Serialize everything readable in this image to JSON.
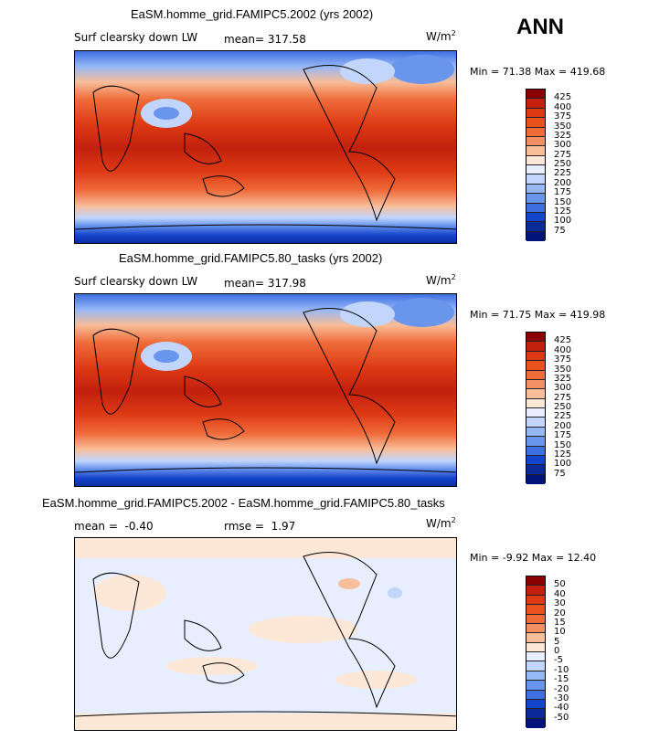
{
  "season": "ANN",
  "panels": [
    {
      "title": "EaSM.homme_grid.FAMIPC5.2002 (yrs 2002)",
      "variable": "Surf clearsky down LW",
      "mean_label": "mean=",
      "mean_value": "317.58",
      "units": "W/m",
      "units_exp": "2",
      "min_label": "Min =",
      "min_value": "71.38",
      "max_label": "Max =",
      "max_value": "419.68",
      "levels": [
        "425",
        "400",
        "375",
        "350",
        "325",
        "300",
        "275",
        "250",
        "225",
        "200",
        "175",
        "150",
        "125",
        "100",
        "75"
      ],
      "colors": [
        "#8b0000",
        "#c3200e",
        "#dd3a14",
        "#e9521e",
        "#ef6c3a",
        "#f39063",
        "#f8bd99",
        "#fde8d8",
        "#e6eeff",
        "#c2d6fc",
        "#96b8f6",
        "#6a95ec",
        "#3d6fe0",
        "#1544cc",
        "#0a2a9a",
        "#00137a"
      ]
    },
    {
      "title": "EaSM.homme_grid.FAMIPC5.80_tasks (yrs 2002)",
      "variable": "Surf clearsky down LW",
      "mean_label": "mean=",
      "mean_value": "317.98",
      "units": "W/m",
      "units_exp": "2",
      "min_label": "Min =",
      "min_value": "71.75",
      "max_label": "Max =",
      "max_value": "419.98",
      "levels": [
        "425",
        "400",
        "375",
        "350",
        "325",
        "300",
        "275",
        "250",
        "225",
        "200",
        "175",
        "150",
        "125",
        "100",
        "75"
      ],
      "colors": [
        "#8b0000",
        "#c3200e",
        "#dd3a14",
        "#e9521e",
        "#ef6c3a",
        "#f39063",
        "#f8bd99",
        "#fde8d8",
        "#e6eeff",
        "#c2d6fc",
        "#96b8f6",
        "#6a95ec",
        "#3d6fe0",
        "#1544cc",
        "#0a2a9a",
        "#00137a"
      ]
    },
    {
      "title": "EaSM.homme_grid.FAMIPC5.2002 - EaSM.homme_grid.FAMIPC5.80_tasks",
      "mean_label": "mean =",
      "mean_value": "-0.40",
      "rmse_label": "rmse =",
      "rmse_value": "1.97",
      "units": "W/m",
      "units_exp": "2",
      "min_label": "Min =",
      "min_value": "-9.92",
      "max_label": "Max =",
      "max_value": "12.40",
      "levels": [
        "50",
        "40",
        "30",
        "20",
        "15",
        "10",
        "5",
        "0",
        "-5",
        "-10",
        "-15",
        "-20",
        "-30",
        "-40",
        "-50"
      ],
      "colors": [
        "#8b0000",
        "#c3200e",
        "#dd3a14",
        "#e9521e",
        "#ef6c3a",
        "#f39063",
        "#f8bd99",
        "#fde8d8",
        "#e6eeff",
        "#c2d6fc",
        "#96b8f6",
        "#6a95ec",
        "#3d6fe0",
        "#1544cc",
        "#0a2a9a",
        "#00137a"
      ]
    }
  ],
  "chart_data": [
    {
      "type": "heatmap",
      "title": "EaSM.homme_grid.FAMIPC5.2002 (yrs 2002)",
      "subtitle": "Surf clearsky down LW",
      "units": "W/m^2",
      "mean": 317.58,
      "min": 71.38,
      "max": 419.68,
      "contour_levels": [
        75,
        100,
        125,
        150,
        175,
        200,
        225,
        250,
        275,
        300,
        325,
        350,
        375,
        400,
        425
      ]
    },
    {
      "type": "heatmap",
      "title": "EaSM.homme_grid.FAMIPC5.80_tasks (yrs 2002)",
      "subtitle": "Surf clearsky down LW",
      "units": "W/m^2",
      "mean": 317.98,
      "min": 71.75,
      "max": 419.98,
      "contour_levels": [
        75,
        100,
        125,
        150,
        175,
        200,
        225,
        250,
        275,
        300,
        325,
        350,
        375,
        400,
        425
      ]
    },
    {
      "type": "heatmap",
      "title": "EaSM.homme_grid.FAMIPC5.2002 - EaSM.homme_grid.FAMIPC5.80_tasks",
      "units": "W/m^2",
      "mean": -0.4,
      "rmse": 1.97,
      "min": -9.92,
      "max": 12.4,
      "contour_levels": [
        -50,
        -40,
        -30,
        -20,
        -15,
        -10,
        -5,
        0,
        5,
        10,
        15,
        20,
        30,
        40,
        50
      ]
    }
  ]
}
